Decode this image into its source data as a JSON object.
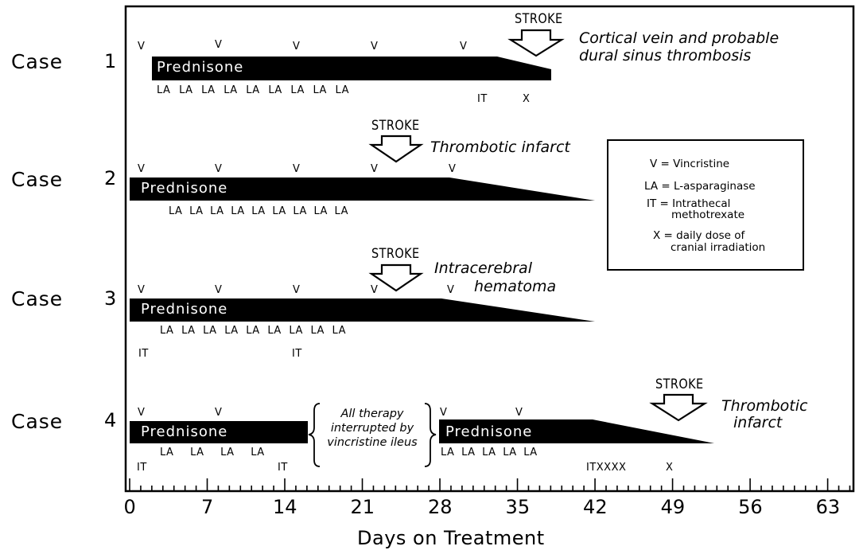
{
  "cases": [
    {
      "label": "Case",
      "number": "1",
      "drug": "Prednisone",
      "v_marks": [
        "V",
        "V",
        "V",
        "V",
        "V"
      ],
      "la_marks": "LA LA LA LA LA LA LA LA LA",
      "other_marks": [
        "IT",
        "X"
      ],
      "event": "STROKE",
      "event_text": [
        "Cortical vein and probable",
        "dural sinus thrombosis"
      ]
    },
    {
      "label": "Case",
      "number": "2",
      "drug": "Prednisone",
      "v_marks": [
        "V",
        "V",
        "V",
        "V",
        "V"
      ],
      "la_marks": "LA LA LA LA LA LA LA LA LA",
      "other_marks": [],
      "event": "STROKE",
      "event_text": [
        "Thrombotic infarct"
      ]
    },
    {
      "label": "Case",
      "number": "3",
      "drug": "Prednisone",
      "v_marks": [
        "V",
        "V",
        "V",
        "V",
        "V"
      ],
      "la_marks": "LA LA LA LA LA LA LA LA LA",
      "other_marks": [
        "IT",
        "IT"
      ],
      "event": "STROKE",
      "event_text": [
        "Intracerebral",
        "hematoma"
      ]
    },
    {
      "label": "Case",
      "number": "4",
      "drug": "Prednisone",
      "drug2": "Prednisone",
      "v_marks": [
        "V",
        "V",
        "V",
        "V"
      ],
      "la_marks_a": "LA LA LA LA",
      "la_marks_b": "LA LA LA LA LA",
      "other_marks": [
        "IT",
        "IT",
        "ITXXXX",
        "X"
      ],
      "interruption": [
        "All therapy",
        "interrupted by",
        "vincristine ileus"
      ],
      "event": "STROKE",
      "event_text": [
        "Thrombotic",
        "infarct"
      ]
    }
  ],
  "legend": [
    {
      "key": "V",
      "desc": [
        "Vincristine"
      ]
    },
    {
      "key": "LA",
      "desc": [
        "L-asparaginase"
      ]
    },
    {
      "key": "IT",
      "desc": [
        "Intrathecal",
        "methotrexate"
      ]
    },
    {
      "key": "X",
      "desc": [
        "daily dose of",
        "cranial irradiation"
      ]
    }
  ],
  "axis": {
    "ticks": [
      "0",
      "7",
      "14",
      "21",
      "28",
      "35",
      "42",
      "49",
      "56",
      "63"
    ],
    "xlabel": "Days on Treatment"
  }
}
